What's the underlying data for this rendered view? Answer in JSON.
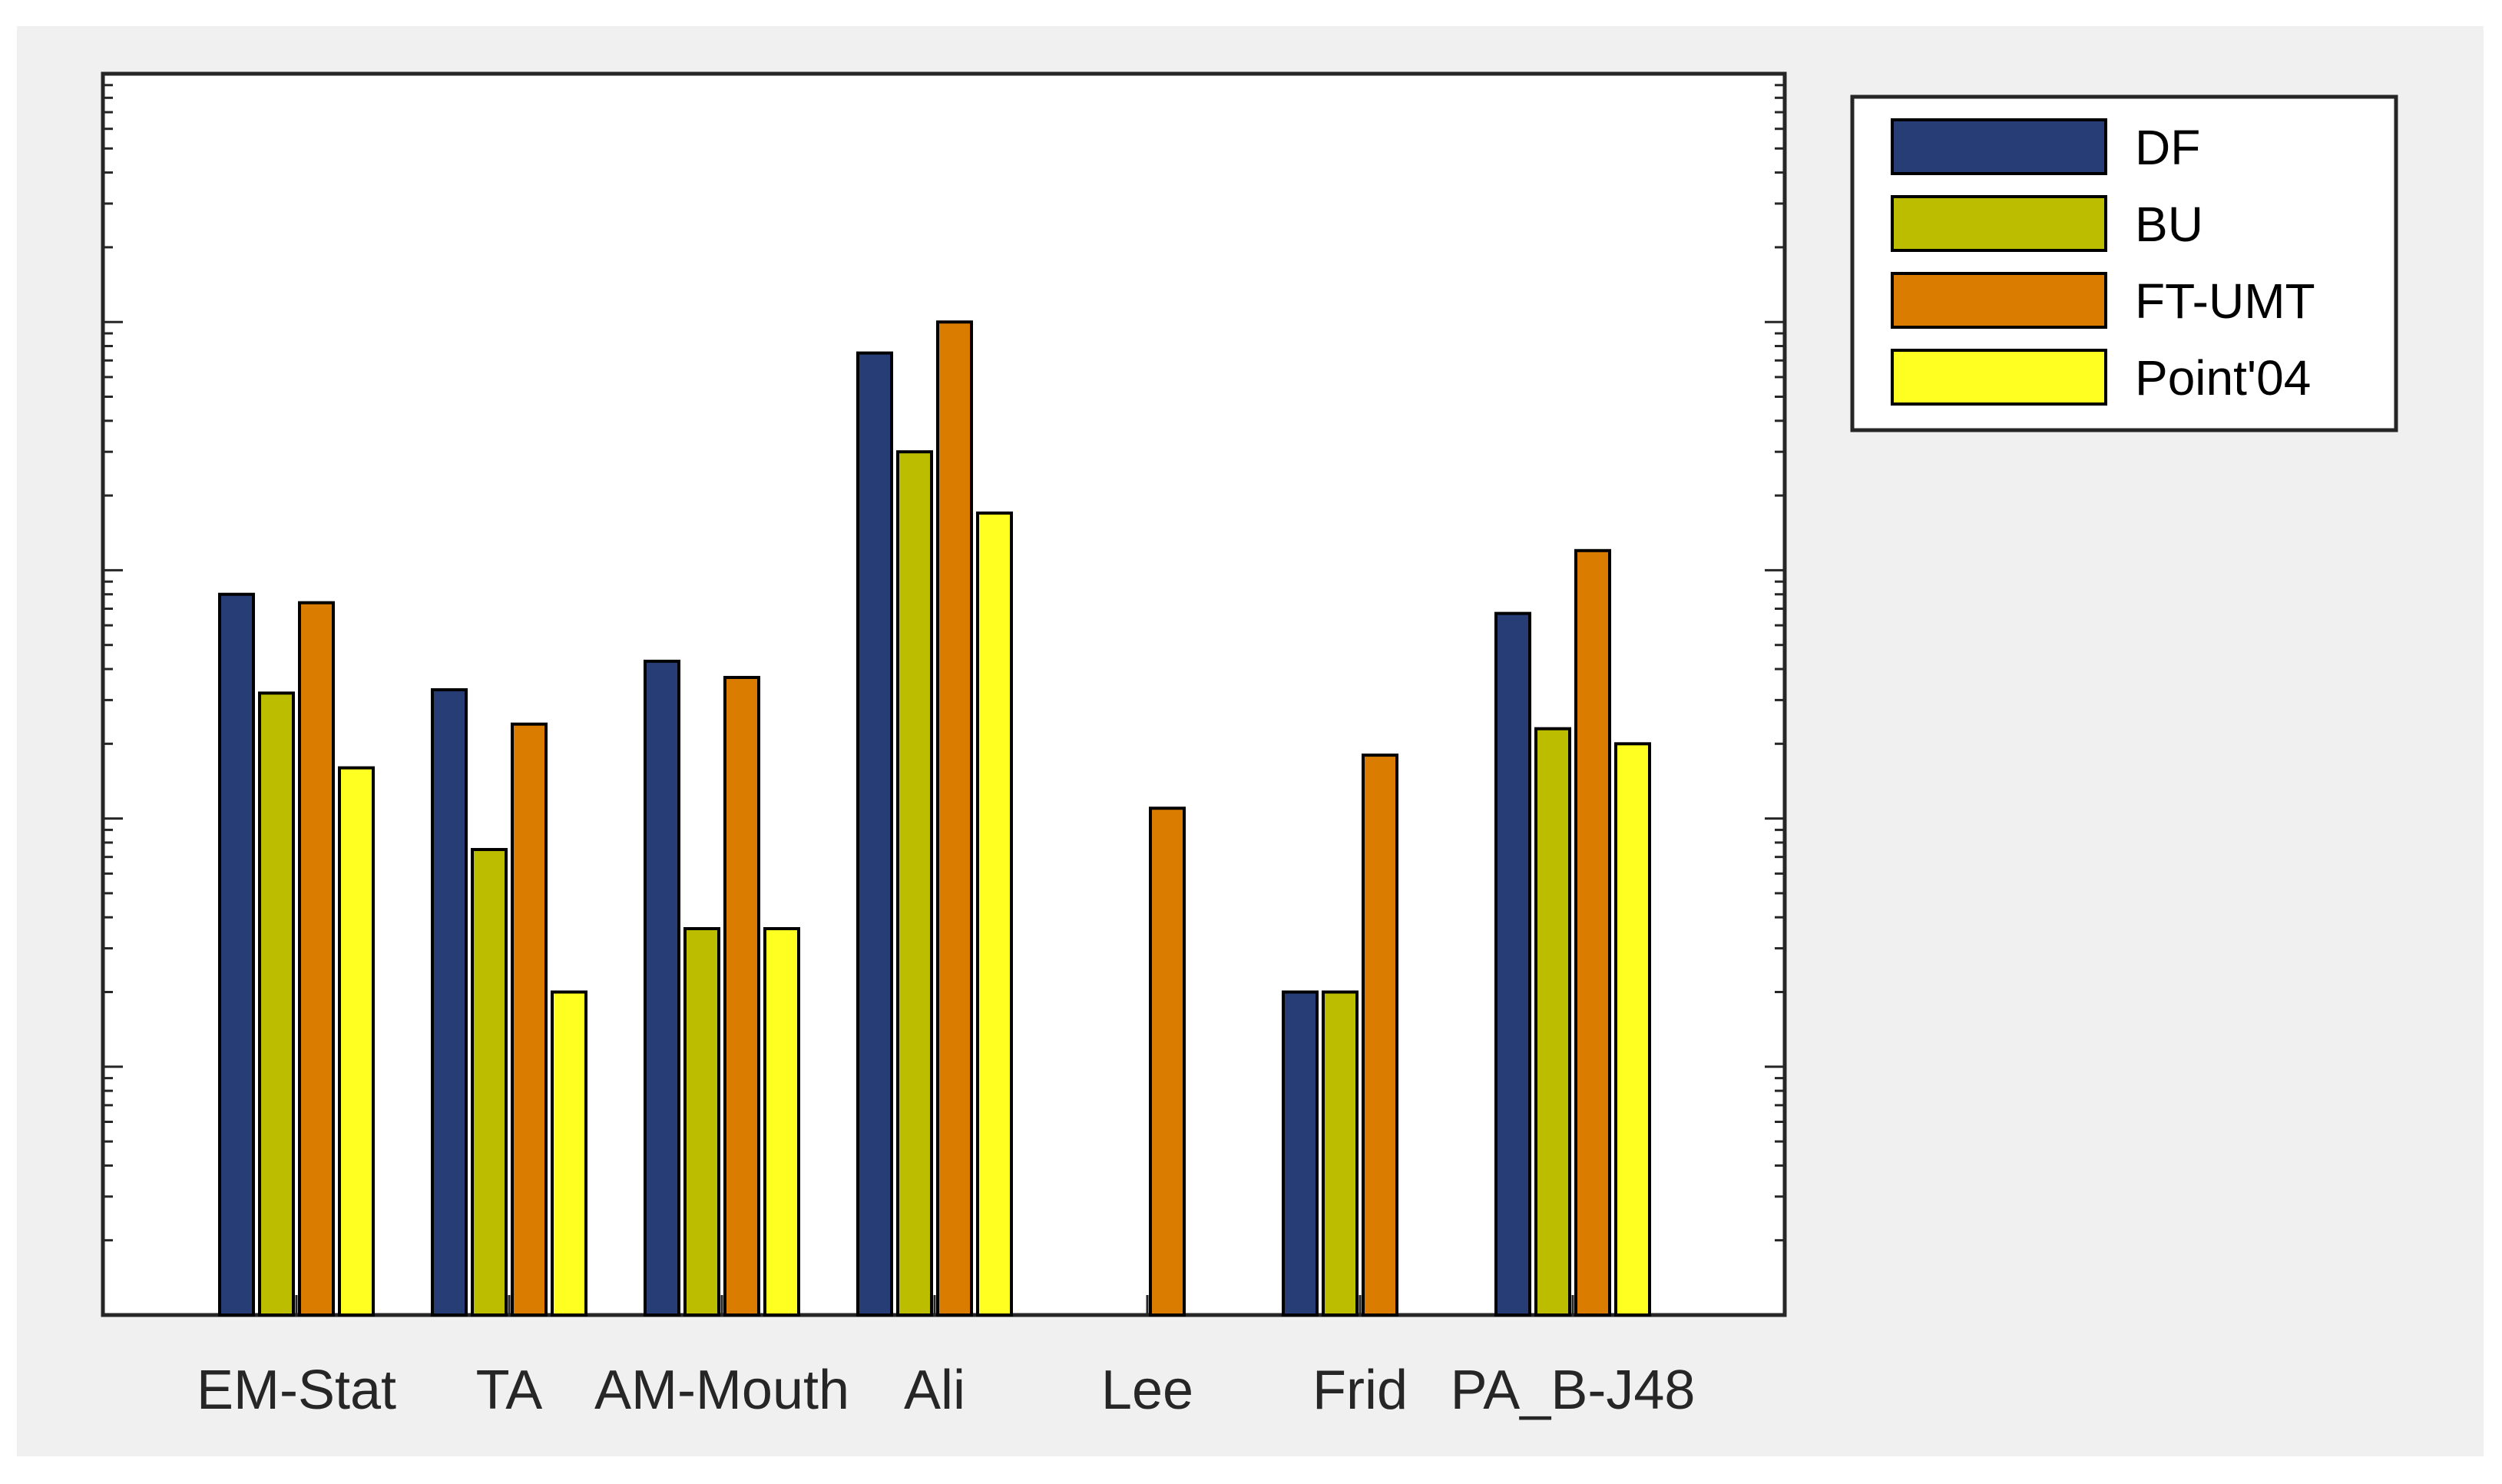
{
  "chart_data": {
    "type": "bar",
    "scale": "log",
    "categories": [
      "EM-Stat",
      "TA",
      "AM-Mouth",
      "Ali",
      "Lee",
      "Frid",
      "PA_B-J48"
    ],
    "series": [
      {
        "name": "DF",
        "color": "#263d76",
        "values": [
          80,
          33,
          43,
          750,
          null,
          2,
          67
        ]
      },
      {
        "name": "BU",
        "color": "#bdbd00",
        "values": [
          32,
          7.5,
          3.6,
          300,
          null,
          2,
          23
        ]
      },
      {
        "name": "FT-UMT",
        "color": "#d97c00",
        "values": [
          74,
          24,
          37,
          1000,
          11,
          18,
          120
        ]
      },
      {
        "name": "Point'04",
        "color": "#ffff22",
        "values": [
          16,
          2,
          3.6,
          170,
          null,
          null,
          20
        ]
      }
    ],
    "ylim": [
      0.1,
      10000
    ],
    "major_ticks": [
      1,
      10,
      100,
      1000
    ],
    "title": "",
    "xlabel": "",
    "ylabel": "",
    "grid": false,
    "legend_position": "outside-top-right"
  }
}
